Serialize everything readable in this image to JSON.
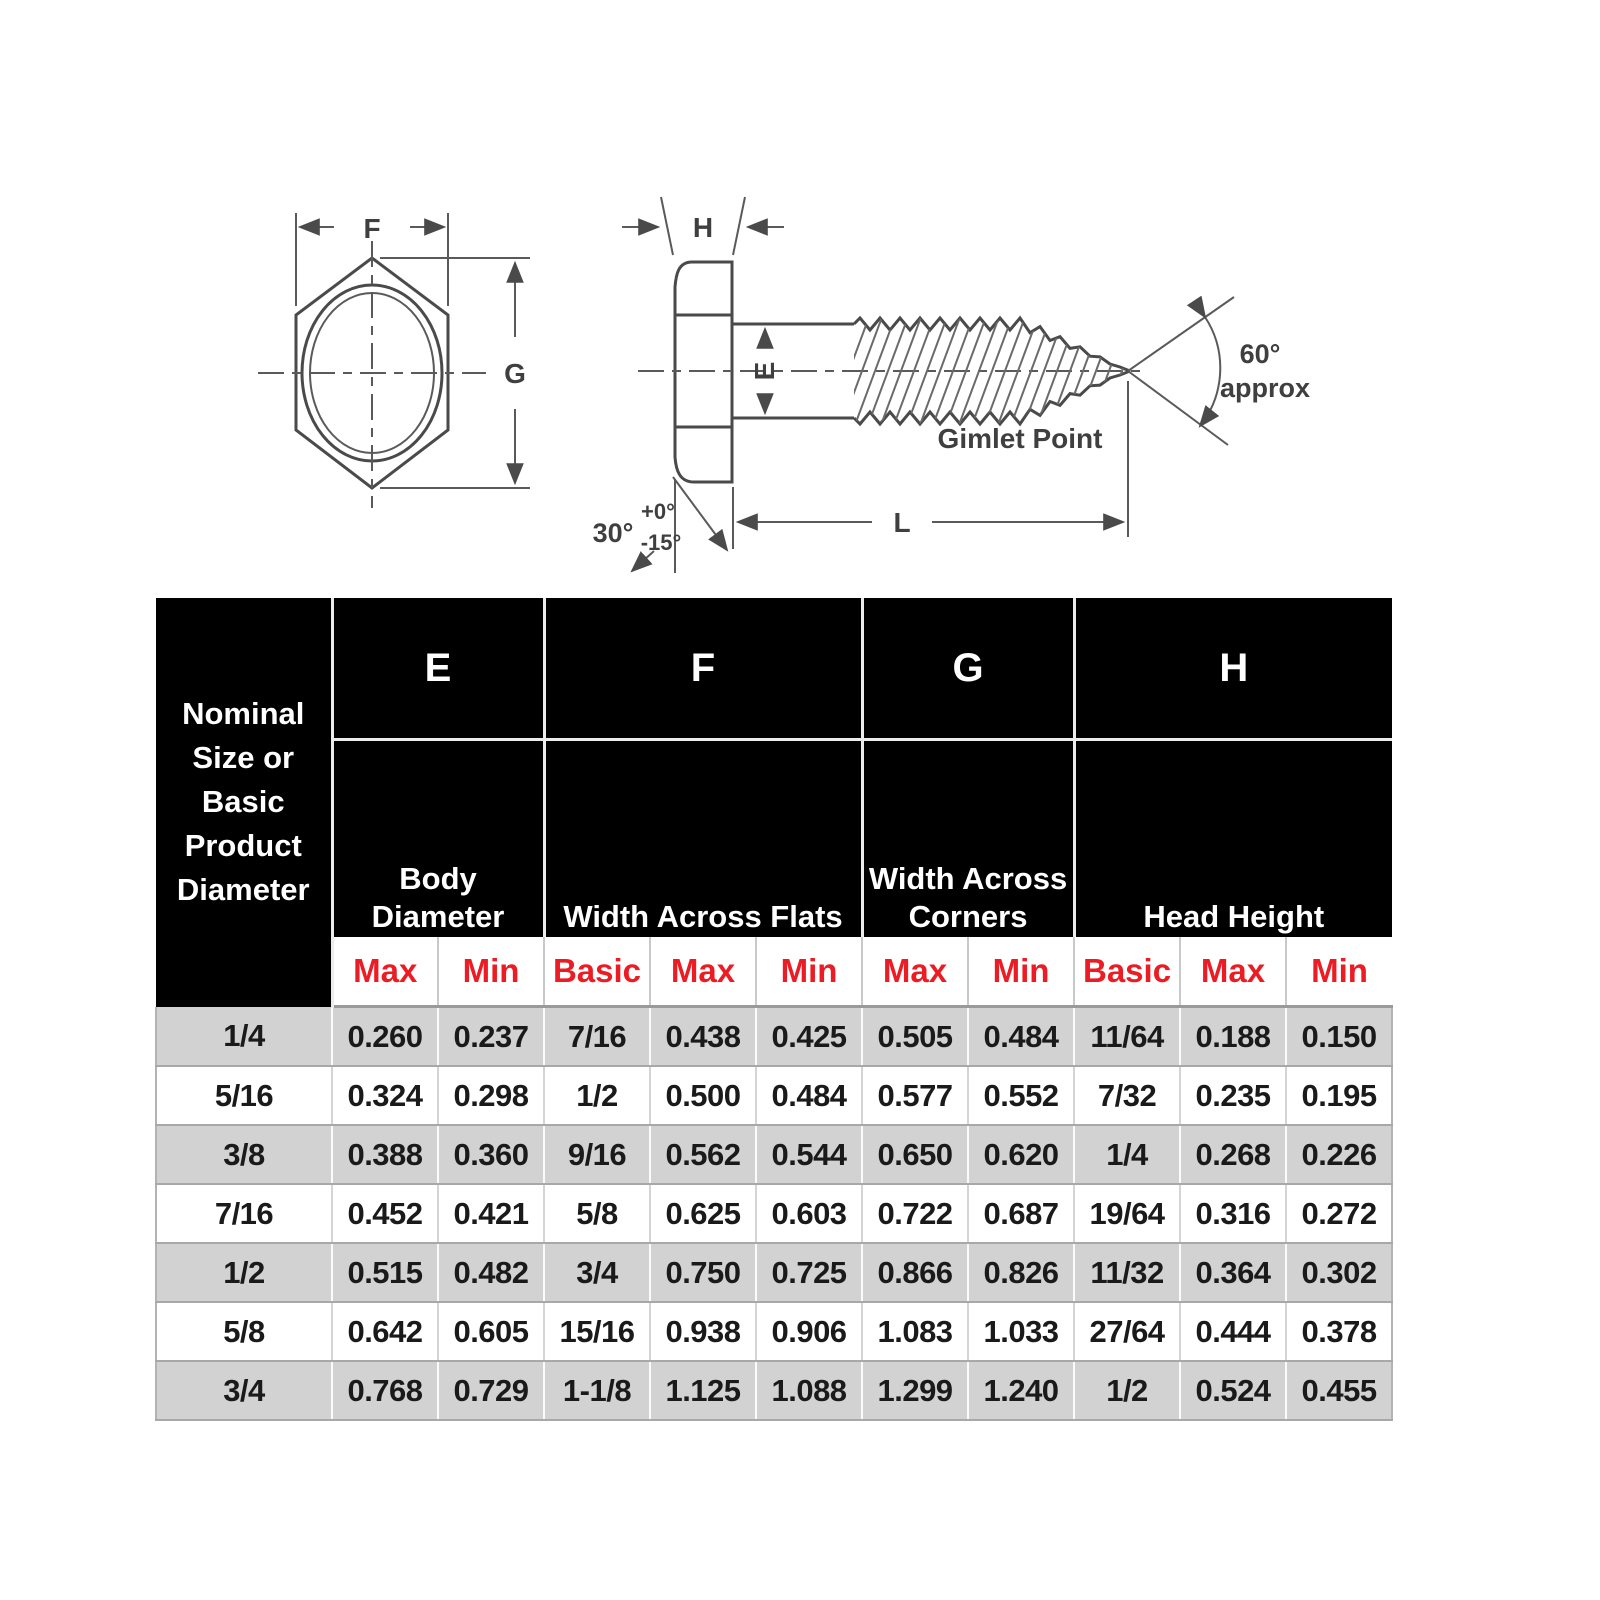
{
  "drawing": {
    "labels": {
      "F": "F",
      "G": "G",
      "H": "H",
      "E": "E",
      "L": "L",
      "angle30": "30°",
      "tol_plus": "+0°",
      "tol_minus": "-15°",
      "angle60": "60°",
      "approx": "approx",
      "gimlet": "Gimlet Point"
    }
  },
  "table": {
    "corner_header": "Nominal Size or Basic Product Diameter",
    "groups": [
      {
        "letter": "E",
        "name": "Body Diameter",
        "span": 2
      },
      {
        "letter": "F",
        "name": "Width Across Flats",
        "span": 3
      },
      {
        "letter": "G",
        "name": "Width Across Corners",
        "span": 2
      },
      {
        "letter": "H",
        "name": "Head Height",
        "span": 3
      }
    ],
    "subheader": [
      "Max",
      "Min",
      "Basic",
      "Max",
      "Min",
      "Max",
      "Min",
      "Basic",
      "Max",
      "Min"
    ],
    "rows": [
      {
        "size": "1/4",
        "values": [
          "0.260",
          "0.237",
          "7/16",
          "0.438",
          "0.425",
          "0.505",
          "0.484",
          "11/64",
          "0.188",
          "0.150"
        ]
      },
      {
        "size": "5/16",
        "values": [
          "0.324",
          "0.298",
          "1/2",
          "0.500",
          "0.484",
          "0.577",
          "0.552",
          "7/32",
          "0.235",
          "0.195"
        ]
      },
      {
        "size": "3/8",
        "values": [
          "0.388",
          "0.360",
          "9/16",
          "0.562",
          "0.544",
          "0.650",
          "0.620",
          "1/4",
          "0.268",
          "0.226"
        ]
      },
      {
        "size": "7/16",
        "values": [
          "0.452",
          "0.421",
          "5/8",
          "0.625",
          "0.603",
          "0.722",
          "0.687",
          "19/64",
          "0.316",
          "0.272"
        ]
      },
      {
        "size": "1/2",
        "values": [
          "0.515",
          "0.482",
          "3/4",
          "0.750",
          "0.725",
          "0.866",
          "0.826",
          "11/32",
          "0.364",
          "0.302"
        ]
      },
      {
        "size": "5/8",
        "values": [
          "0.642",
          "0.605",
          "15/16",
          "0.938",
          "0.906",
          "1.083",
          "1.033",
          "27/64",
          "0.444",
          "0.378"
        ]
      },
      {
        "size": "3/4",
        "values": [
          "0.768",
          "0.729",
          "1-1/8",
          "1.125",
          "1.088",
          "1.299",
          "1.240",
          "1/2",
          "0.524",
          "0.455"
        ]
      }
    ]
  },
  "colors": {
    "header_bg": "#000000",
    "header_text": "#ffffff",
    "subheader_text": "#ec1c24",
    "row_shaded": "#d2d2d2",
    "row_plain": "#ffffff",
    "row_divider": "#a8a8a8",
    "drawing_stroke": "#4a4a4a"
  }
}
